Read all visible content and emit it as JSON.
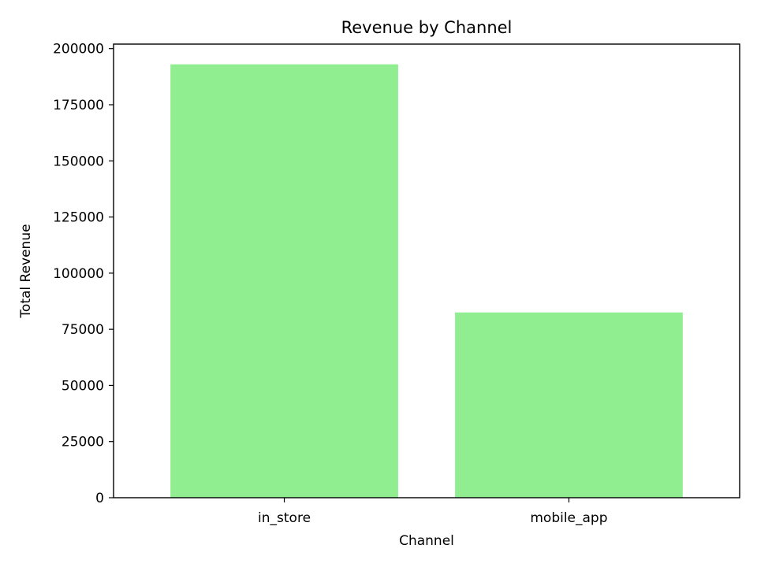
{
  "chart_data": {
    "type": "bar",
    "title": "Revenue by Channel",
    "xlabel": "Channel",
    "ylabel": "Total Revenue",
    "categories": [
      "in_store",
      "mobile_app"
    ],
    "values": [
      193000,
      82500
    ],
    "ylim": [
      0,
      202000
    ],
    "yticks": [
      0,
      25000,
      50000,
      75000,
      100000,
      125000,
      150000,
      175000,
      200000
    ],
    "bar_color": "#90ee90",
    "grid": false,
    "legend": "none"
  }
}
